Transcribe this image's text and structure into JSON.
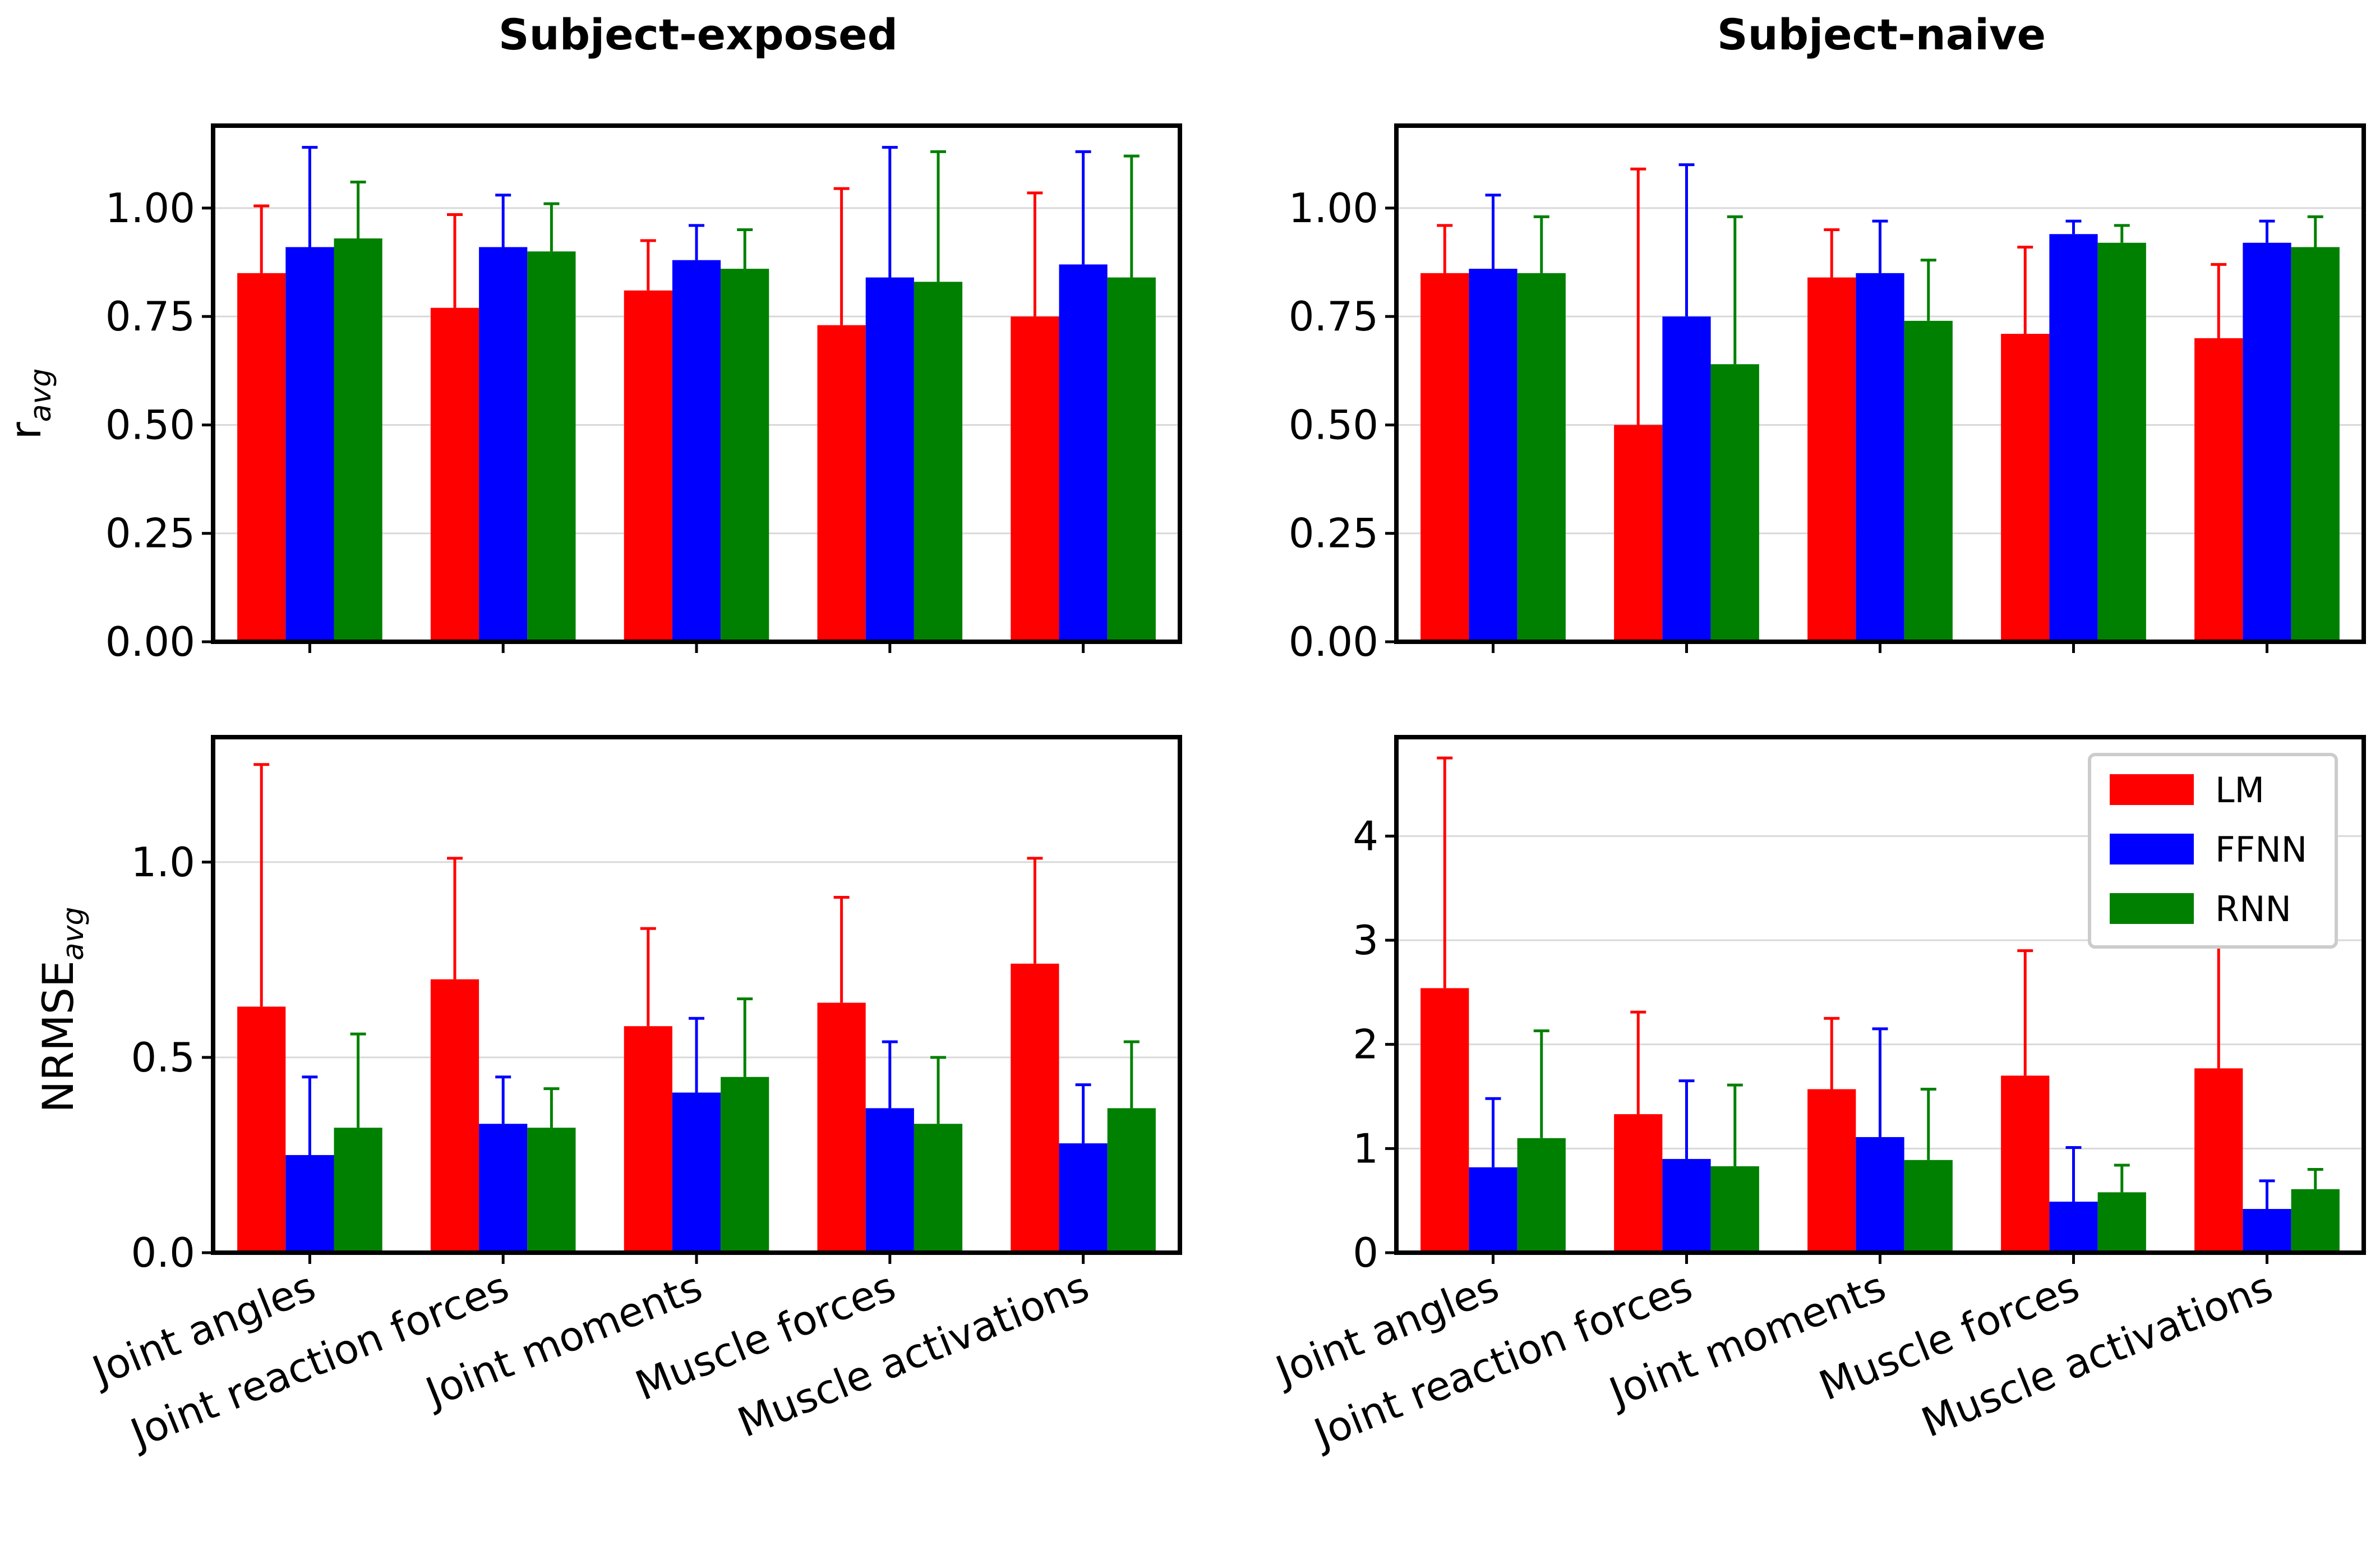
{
  "figure": {
    "column_titles": [
      "Subject-exposed",
      "Subject-naive"
    ],
    "row_ylabels": [
      {
        "main": "r",
        "sub": "avg"
      },
      {
        "main": "NRMSE",
        "sub": "avg"
      }
    ]
  },
  "legend": {
    "location": "upper-right of bottom-right panel",
    "items": [
      {
        "label": "LM",
        "color": "#ff0000"
      },
      {
        "label": "FFNN",
        "color": "#0000ff"
      },
      {
        "label": "RNN",
        "color": "#008000"
      }
    ]
  },
  "chart_data": [
    {
      "type": "bar",
      "panel": "top-left",
      "title": "Subject-exposed",
      "ylabel": "r_avg",
      "xlabel": "",
      "categories": [
        "Joint angles",
        "Joint reaction forces",
        "Joint moments",
        "Muscle forces",
        "Muscle activations"
      ],
      "ylim": [
        0,
        1.19
      ],
      "yticks": [
        0.0,
        0.25,
        0.5,
        0.75,
        1.0
      ],
      "ytick_labels": [
        "0.00",
        "0.25",
        "0.50",
        "0.75",
        "1.00"
      ],
      "grid": "horizontal",
      "show_category_labels": false,
      "series": [
        {
          "name": "LM",
          "color": "#ff0000",
          "values": [
            0.85,
            0.77,
            0.81,
            0.73,
            0.75
          ],
          "err": [
            0.155,
            0.215,
            0.115,
            0.315,
            0.285
          ]
        },
        {
          "name": "FFNN",
          "color": "#0000ff",
          "values": [
            0.91,
            0.91,
            0.88,
            0.84,
            0.87
          ],
          "err": [
            0.23,
            0.12,
            0.08,
            0.3,
            0.26
          ]
        },
        {
          "name": "RNN",
          "color": "#008000",
          "values": [
            0.93,
            0.9,
            0.86,
            0.83,
            0.84
          ],
          "err": [
            0.13,
            0.11,
            0.09,
            0.3,
            0.28
          ]
        }
      ]
    },
    {
      "type": "bar",
      "panel": "top-right",
      "title": "Subject-naive",
      "ylabel": "",
      "xlabel": "",
      "categories": [
        "Joint angles",
        "Joint reaction forces",
        "Joint moments",
        "Muscle forces",
        "Muscle activations"
      ],
      "ylim": [
        0,
        1.19
      ],
      "yticks": [
        0.0,
        0.25,
        0.5,
        0.75,
        1.0
      ],
      "ytick_labels": [
        "0.00",
        "0.25",
        "0.50",
        "0.75",
        "1.00"
      ],
      "grid": "horizontal",
      "show_category_labels": false,
      "series": [
        {
          "name": "LM",
          "color": "#ff0000",
          "values": [
            0.85,
            0.5,
            0.84,
            0.71,
            0.7
          ],
          "err": [
            0.11,
            0.59,
            0.11,
            0.2,
            0.17
          ]
        },
        {
          "name": "FFNN",
          "color": "#0000ff",
          "values": [
            0.86,
            0.75,
            0.85,
            0.94,
            0.92
          ],
          "err": [
            0.17,
            0.35,
            0.12,
            0.03,
            0.05
          ]
        },
        {
          "name": "RNN",
          "color": "#008000",
          "values": [
            0.85,
            0.64,
            0.74,
            0.92,
            0.91
          ],
          "err": [
            0.13,
            0.34,
            0.14,
            0.04,
            0.07
          ]
        }
      ]
    },
    {
      "type": "bar",
      "panel": "bottom-left",
      "title": "",
      "ylabel": "NRMSE_avg",
      "xlabel": "",
      "categories": [
        "Joint angles",
        "Joint reaction forces",
        "Joint moments",
        "Muscle forces",
        "Muscle activations"
      ],
      "ylim": [
        0,
        1.32
      ],
      "yticks": [
        0.0,
        0.5,
        1.0
      ],
      "ytick_labels": [
        "0.0",
        "0.5",
        "1.0"
      ],
      "grid": "horizontal",
      "show_category_labels": true,
      "series": [
        {
          "name": "LM",
          "color": "#ff0000",
          "values": [
            0.63,
            0.7,
            0.58,
            0.64,
            0.74
          ],
          "err": [
            0.62,
            0.31,
            0.25,
            0.27,
            0.27
          ]
        },
        {
          "name": "FFNN",
          "color": "#0000ff",
          "values": [
            0.25,
            0.33,
            0.41,
            0.37,
            0.28
          ],
          "err": [
            0.2,
            0.12,
            0.19,
            0.17,
            0.15
          ]
        },
        {
          "name": "RNN",
          "color": "#008000",
          "values": [
            0.32,
            0.32,
            0.45,
            0.33,
            0.37
          ],
          "err": [
            0.24,
            0.1,
            0.2,
            0.17,
            0.17
          ]
        }
      ]
    },
    {
      "type": "bar",
      "panel": "bottom-right",
      "title": "",
      "ylabel": "",
      "xlabel": "",
      "categories": [
        "Joint angles",
        "Joint reaction forces",
        "Joint moments",
        "Muscle forces",
        "Muscle activations"
      ],
      "ylim": [
        0,
        4.95
      ],
      "yticks": [
        0,
        1,
        2,
        3,
        4
      ],
      "ytick_labels": [
        "0",
        "1",
        "2",
        "3",
        "4"
      ],
      "grid": "horizontal",
      "show_category_labels": true,
      "series": [
        {
          "name": "LM",
          "color": "#ff0000",
          "values": [
            2.54,
            1.33,
            1.57,
            1.7,
            1.77
          ],
          "err": [
            2.21,
            0.98,
            0.68,
            1.2,
            1.28
          ]
        },
        {
          "name": "FFNN",
          "color": "#0000ff",
          "values": [
            0.82,
            0.9,
            1.11,
            0.49,
            0.42
          ],
          "err": [
            0.66,
            0.75,
            1.04,
            0.52,
            0.27
          ]
        },
        {
          "name": "RNN",
          "color": "#008000",
          "values": [
            1.1,
            0.83,
            0.89,
            0.58,
            0.61
          ],
          "err": [
            1.03,
            0.78,
            0.68,
            0.26,
            0.19
          ]
        }
      ]
    }
  ]
}
